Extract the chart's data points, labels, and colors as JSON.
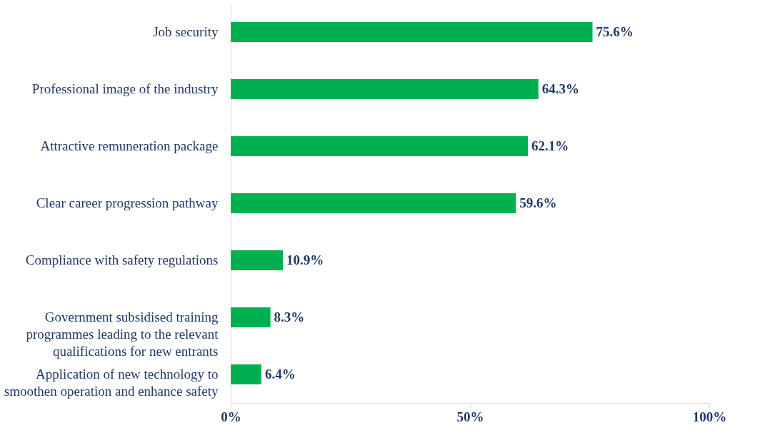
{
  "chart_data": {
    "type": "bar",
    "orientation": "horizontal",
    "categories": [
      "Job security",
      "Professional image of the industry",
      "Attractive remuneration package",
      "Clear career progression pathway",
      "Compliance with safety regulations",
      "Government subsidised training programmes leading to the relevant qualifications for new entrants",
      "Application of new technology to smoothen operation and enhance safety"
    ],
    "values": [
      75.6,
      64.3,
      62.1,
      59.6,
      10.9,
      8.3,
      6.4
    ],
    "value_labels": [
      "75.6%",
      "64.3%",
      "62.1%",
      "59.6%",
      "10.9%",
      "8.3%",
      "6.4%"
    ],
    "color": "#00b050",
    "xlim": [
      0,
      100
    ],
    "xticks": [
      {
        "value": 0,
        "label": "0%"
      },
      {
        "value": 50,
        "label": "50%"
      },
      {
        "value": 100,
        "label": "100%"
      }
    ],
    "grid": false
  }
}
